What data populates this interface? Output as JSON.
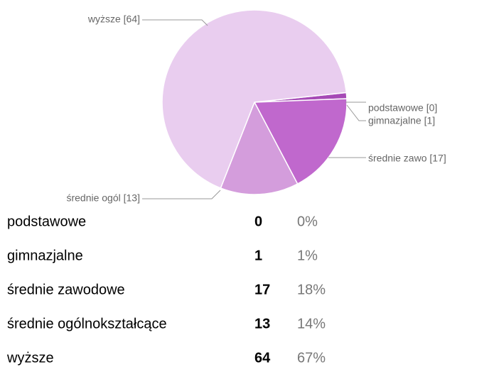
{
  "chart_data": {
    "type": "pie",
    "categories": [
      "podstawowe",
      "gimnazjalne",
      "średnie zawodowe",
      "średnie ogólnokształcące",
      "wyższe"
    ],
    "values": [
      0,
      1,
      17,
      13,
      64
    ],
    "slice_labels": [
      "podstawowe [0]",
      "gimnazjalne [1]",
      "średnie zawo [17]",
      "średnie ogól [13]",
      "wyższe [64]"
    ],
    "percent_labels": [
      "0%",
      "1%",
      "18%",
      "14%",
      "67%"
    ],
    "colors": [
      "#8e3fa0",
      "#a64ab6",
      "#c068cd",
      "#d49ddc",
      "#e9cdef"
    ]
  }
}
